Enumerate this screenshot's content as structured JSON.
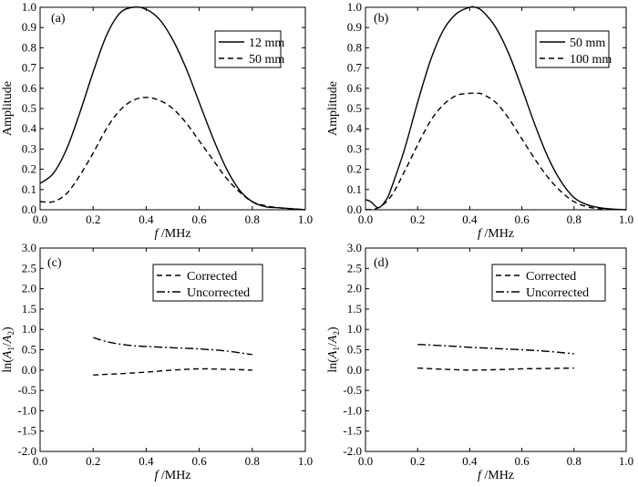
{
  "chart_data": [
    {
      "type": "line",
      "panel_label": "(a)",
      "xlabel_italic": "f",
      "xlabel_rest": " /MHz",
      "ylabel": "Amplitude",
      "xlim": [
        0,
        1.0
      ],
      "ylim": [
        0,
        1.0
      ],
      "xticks": [
        "0.0",
        "0.2",
        "0.4",
        "0.6",
        "0.8",
        "1.0"
      ],
      "yticks": [
        "0.0",
        "0.1",
        "0.2",
        "0.3",
        "0.4",
        "0.5",
        "0.6",
        "0.7",
        "0.8",
        "0.9",
        "1.0"
      ],
      "legend": "top-right",
      "series": [
        {
          "name": "12 mm",
          "style": "solid",
          "x": [
            0,
            0.05,
            0.1,
            0.15,
            0.2,
            0.25,
            0.3,
            0.35,
            0.4,
            0.45,
            0.5,
            0.55,
            0.6,
            0.65,
            0.7,
            0.75,
            0.8,
            0.85,
            0.9,
            0.95,
            1.0
          ],
          "y": [
            0.13,
            0.18,
            0.3,
            0.48,
            0.68,
            0.86,
            0.97,
            1.0,
            0.99,
            0.94,
            0.84,
            0.7,
            0.53,
            0.36,
            0.21,
            0.1,
            0.04,
            0.015,
            0.01,
            0.005,
            0.0
          ]
        },
        {
          "name": "50 mm",
          "style": "dashed",
          "x": [
            0,
            0.05,
            0.1,
            0.15,
            0.2,
            0.25,
            0.3,
            0.35,
            0.4,
            0.45,
            0.5,
            0.55,
            0.6,
            0.65,
            0.7,
            0.75,
            0.8,
            0.85,
            0.9,
            0.95,
            1.0
          ],
          "y": [
            0.04,
            0.04,
            0.08,
            0.17,
            0.28,
            0.4,
            0.49,
            0.54,
            0.555,
            0.54,
            0.5,
            0.43,
            0.34,
            0.25,
            0.16,
            0.09,
            0.04,
            0.02,
            0.01,
            0.005,
            0.0
          ]
        }
      ]
    },
    {
      "type": "line",
      "panel_label": "(b)",
      "xlabel_italic": "f",
      "xlabel_rest": " /MHz",
      "ylabel": "Amplitude",
      "xlim": [
        0,
        1.0
      ],
      "ylim": [
        0,
        1.0
      ],
      "xticks": [
        "0.0",
        "0.2",
        "0.4",
        "0.6",
        "0.8",
        "1.0"
      ],
      "yticks": [
        "0.0",
        "0.1",
        "0.2",
        "0.3",
        "0.4",
        "0.5",
        "0.6",
        "0.7",
        "0.8",
        "0.9",
        "1.0"
      ],
      "legend": "top-right",
      "series": [
        {
          "name": "50 mm",
          "style": "solid",
          "x": [
            0,
            0.02,
            0.05,
            0.08,
            0.1,
            0.15,
            0.2,
            0.25,
            0.3,
            0.35,
            0.4,
            0.42,
            0.45,
            0.5,
            0.55,
            0.6,
            0.65,
            0.7,
            0.75,
            0.8,
            0.85,
            0.9,
            0.95,
            1.0
          ],
          "y": [
            0.05,
            0.04,
            0.01,
            0.05,
            0.11,
            0.3,
            0.53,
            0.74,
            0.89,
            0.97,
            1.0,
            1.0,
            0.98,
            0.9,
            0.77,
            0.6,
            0.42,
            0.26,
            0.14,
            0.06,
            0.025,
            0.01,
            0.003,
            0.0
          ]
        },
        {
          "name": "100 mm",
          "style": "dashed",
          "x": [
            0,
            0.05,
            0.1,
            0.15,
            0.2,
            0.25,
            0.3,
            0.35,
            0.4,
            0.43,
            0.45,
            0.5,
            0.55,
            0.6,
            0.65,
            0.7,
            0.75,
            0.8,
            0.85,
            0.9,
            0.95,
            1.0
          ],
          "y": [
            0.0,
            0.01,
            0.07,
            0.19,
            0.32,
            0.44,
            0.52,
            0.565,
            0.575,
            0.575,
            0.57,
            0.53,
            0.45,
            0.35,
            0.25,
            0.16,
            0.09,
            0.04,
            0.015,
            0.005,
            0.002,
            0.0
          ]
        }
      ]
    },
    {
      "type": "line",
      "panel_label": "(c)",
      "xlabel_italic": "f",
      "xlabel_rest": " /MHz",
      "ylabel": "ln(A1/A2)",
      "ylabel_parts": {
        "pre": "ln(",
        "a": "A",
        "s1": "1",
        "slash": "/",
        "s2": "2",
        "post": ")"
      },
      "xlim": [
        0,
        1.0
      ],
      "ylim": [
        -2.0,
        3.0
      ],
      "xticks": [
        "0.0",
        "0.2",
        "0.4",
        "0.6",
        "0.8",
        "1.0"
      ],
      "yticks": [
        "-2.0",
        "-1.5",
        "-1.0",
        "-0.5",
        "0.0",
        "0.5",
        "1.0",
        "1.5",
        "2.0",
        "2.5",
        "3.0"
      ],
      "legend": "top-right",
      "series": [
        {
          "name": "Corrected",
          "style": "dashed",
          "x": [
            0.2,
            0.3,
            0.4,
            0.5,
            0.6,
            0.7,
            0.8
          ],
          "y": [
            -0.12,
            -0.09,
            -0.05,
            0.0,
            0.03,
            0.02,
            0.0
          ]
        },
        {
          "name": "Uncorrected",
          "style": "dashdot",
          "x": [
            0.2,
            0.25,
            0.3,
            0.35,
            0.4,
            0.5,
            0.6,
            0.7,
            0.8
          ],
          "y": [
            0.8,
            0.7,
            0.64,
            0.6,
            0.58,
            0.55,
            0.52,
            0.47,
            0.38
          ]
        }
      ]
    },
    {
      "type": "line",
      "panel_label": "(d)",
      "xlabel_italic": "f",
      "xlabel_rest": " /MHz",
      "ylabel": "ln(A1/A2)",
      "ylabel_parts": {
        "pre": "ln(",
        "a": "A",
        "s1": "1",
        "slash": "/",
        "s2": "2",
        "post": ")"
      },
      "xlim": [
        0,
        1.0
      ],
      "ylim": [
        -2.0,
        3.0
      ],
      "xticks": [
        "0.0",
        "0.2",
        "0.4",
        "0.6",
        "0.8",
        "1.0"
      ],
      "yticks": [
        "-2.0",
        "-1.5",
        "-1.0",
        "-0.5",
        "0.0",
        "0.5",
        "1.0",
        "1.5",
        "2.0",
        "2.5",
        "3.0"
      ],
      "legend": "top-right",
      "series": [
        {
          "name": "Corrected",
          "style": "dashed",
          "x": [
            0.2,
            0.3,
            0.4,
            0.5,
            0.6,
            0.7,
            0.8
          ],
          "y": [
            0.05,
            0.02,
            0.0,
            0.01,
            0.03,
            0.04,
            0.05
          ]
        },
        {
          "name": "Uncorrected",
          "style": "dashdot",
          "x": [
            0.2,
            0.3,
            0.4,
            0.5,
            0.6,
            0.7,
            0.8
          ],
          "y": [
            0.63,
            0.6,
            0.56,
            0.53,
            0.5,
            0.46,
            0.4
          ]
        }
      ]
    }
  ]
}
